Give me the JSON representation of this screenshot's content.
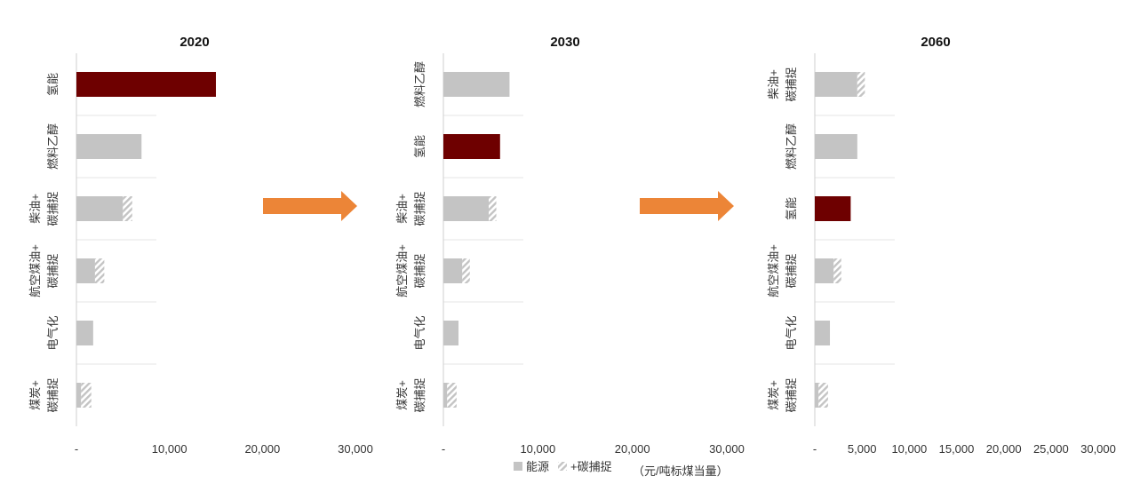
{
  "colors": {
    "energy": "#c4c4c4",
    "hydrogen": "#6e0000",
    "ccs_hatch": "#c4c4c4",
    "arrow": "#ec8537",
    "axis": "#cfcfcf",
    "separator": "#e6e6e6"
  },
  "legend": {
    "energy_label": "能源",
    "ccs_label": "+碳捕捉",
    "unit_label": "（元/吨标煤当量）"
  },
  "chart_data": [
    {
      "type": "bar",
      "orientation": "horizontal",
      "stacked": true,
      "title": "2020",
      "xlim": [
        0,
        30000
      ],
      "xticks": [
        "-",
        "10,000",
        "20,000",
        "30,000"
      ],
      "categories": [
        {
          "lines": [
            "氢能"
          ],
          "energy": 15000,
          "ccs": 0,
          "highlight": true
        },
        {
          "lines": [
            "燃料乙醇"
          ],
          "energy": 7000,
          "ccs": 0,
          "highlight": false
        },
        {
          "lines": [
            "柴油+",
            "碳捕捉"
          ],
          "energy": 5000,
          "ccs": 1000,
          "highlight": false
        },
        {
          "lines": [
            "航空煤油+",
            "碳捕捉"
          ],
          "energy": 2000,
          "ccs": 1000,
          "highlight": false
        },
        {
          "lines": [
            "电气化"
          ],
          "energy": 1800,
          "ccs": 0,
          "highlight": false
        },
        {
          "lines": [
            "煤炭+",
            "碳捕捉"
          ],
          "energy": 500,
          "ccs": 1100,
          "highlight": false
        }
      ]
    },
    {
      "type": "bar",
      "orientation": "horizontal",
      "stacked": true,
      "title": "2030",
      "xlim": [
        0,
        30000
      ],
      "xticks": [
        "-",
        "10,000",
        "20,000",
        "30,000"
      ],
      "categories": [
        {
          "lines": [
            "燃料乙醇"
          ],
          "energy": 7000,
          "ccs": 0,
          "highlight": false
        },
        {
          "lines": [
            "氢能"
          ],
          "energy": 6000,
          "ccs": 0,
          "highlight": true
        },
        {
          "lines": [
            "柴油+",
            "碳捕捉"
          ],
          "energy": 4800,
          "ccs": 800,
          "highlight": false
        },
        {
          "lines": [
            "航空煤油+",
            "碳捕捉"
          ],
          "energy": 2000,
          "ccs": 800,
          "highlight": false
        },
        {
          "lines": [
            "电气化"
          ],
          "energy": 1600,
          "ccs": 0,
          "highlight": false
        },
        {
          "lines": [
            "煤炭+",
            "碳捕捉"
          ],
          "energy": 400,
          "ccs": 1000,
          "highlight": false
        }
      ]
    },
    {
      "type": "bar",
      "orientation": "horizontal",
      "stacked": true,
      "title": "2060",
      "xlim": [
        0,
        30000
      ],
      "xticks": [
        "-",
        "5,000",
        "10,000",
        "15,000",
        "20,000",
        "25,000",
        "30,000"
      ],
      "categories": [
        {
          "lines": [
            "柴油+",
            "碳捕捉"
          ],
          "energy": 4500,
          "ccs": 800,
          "highlight": false
        },
        {
          "lines": [
            "燃料乙醇"
          ],
          "energy": 4500,
          "ccs": 0,
          "highlight": false
        },
        {
          "lines": [
            "氢能"
          ],
          "energy": 3800,
          "ccs": 0,
          "highlight": true
        },
        {
          "lines": [
            "航空煤油+",
            "碳捕捉"
          ],
          "energy": 2000,
          "ccs": 800,
          "highlight": false
        },
        {
          "lines": [
            "电气化"
          ],
          "energy": 1600,
          "ccs": 0,
          "highlight": false
        },
        {
          "lines": [
            "煤炭+",
            "碳捕捉"
          ],
          "energy": 400,
          "ccs": 1000,
          "highlight": false
        }
      ]
    }
  ]
}
